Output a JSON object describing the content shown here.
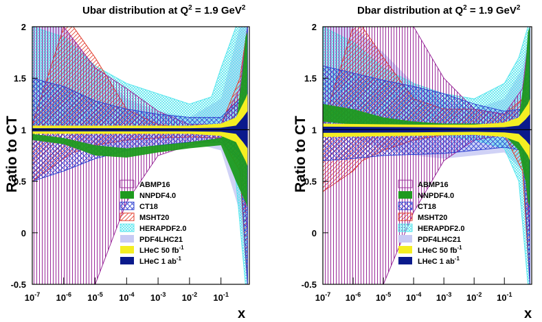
{
  "colors": {
    "abmp16": "#9a2a9a",
    "nnpdf40": "#1f9a1f",
    "ct18": "#2b3fd0",
    "msht20": "#e23a2a",
    "herapdf20": "#58e6ee",
    "pdf4lhc21": "#c8caf4",
    "lhec50": "#f4ee22",
    "lhec1": "#0a1a8c"
  },
  "chart_data": [
    {
      "type": "area",
      "title_main": "Ubar distribution at Q",
      "title_sup": "2",
      "title_rest": " = 1.9 GeV",
      "title_sup2": "2",
      "ylabel": "Ratio to CT",
      "xlabel": "x",
      "xscale": "log",
      "xlim": [
        1e-07,
        0.8
      ],
      "ylim": [
        -0.5,
        2
      ],
      "x_ticks": [
        {
          "base": "10",
          "exp": "-7"
        },
        {
          "base": "10",
          "exp": "-6"
        },
        {
          "base": "10",
          "exp": "-5"
        },
        {
          "base": "10",
          "exp": "-4"
        },
        {
          "base": "10",
          "exp": "-3"
        },
        {
          "base": "10",
          "exp": "-2"
        },
        {
          "base": "10",
          "exp": "-1"
        }
      ],
      "y_ticks": [
        "2",
        "1.5",
        "1",
        "0.5",
        "0",
        "-0.5"
      ],
      "legend": [
        {
          "label": "ABMP16",
          "sup": ""
        },
        {
          "label": "NNPDF4.0",
          "sup": ""
        },
        {
          "label": "CT18",
          "sup": ""
        },
        {
          "label": "MSHT20",
          "sup": ""
        },
        {
          "label": "HERAPDF2.0",
          "sup": ""
        },
        {
          "label": "PDF4LHC21",
          "sup": ""
        },
        {
          "label": "LHeC 50 fb",
          "sup": "-1"
        },
        {
          "label": "LHeC 1 ab",
          "sup": "-1"
        }
      ],
      "series": [
        {
          "name": "PDF4LHC21",
          "x": [
            1e-07,
            1e-06,
            1e-05,
            0.0001,
            0.001,
            0.01,
            0.1,
            0.4,
            0.7
          ],
          "upper": [
            2.0,
            2.0,
            1.6,
            1.3,
            1.18,
            1.12,
            1.3,
            2.0,
            2.0
          ],
          "lower": [
            1.0,
            0.98,
            0.8,
            0.82,
            0.86,
            0.88,
            0.8,
            0.2,
            -0.5
          ]
        },
        {
          "name": "HERAPDF2.0",
          "x": [
            1e-07,
            1e-06,
            1e-05,
            0.0001,
            0.001,
            0.01,
            0.05,
            0.1,
            0.3,
            0.6,
            0.7
          ],
          "upper": [
            2.0,
            1.9,
            1.62,
            1.45,
            1.35,
            1.25,
            1.32,
            1.6,
            2.0,
            2.0,
            2.0
          ],
          "lower": [
            1.05,
            1.05,
            1.02,
            1.0,
            1.0,
            1.0,
            0.97,
            0.95,
            0.5,
            -0.5,
            -0.5
          ]
        },
        {
          "name": "MSHT20",
          "x": [
            1e-07,
            1e-06,
            2e-06,
            1e-05,
            0.0001,
            0.001,
            0.01,
            0.1,
            0.4,
            0.7
          ],
          "upper": [
            1.05,
            2.0,
            2.0,
            1.7,
            1.2,
            1.05,
            1.02,
            1.05,
            1.5,
            2.0
          ],
          "lower": [
            0.5,
            0.72,
            0.78,
            0.85,
            0.9,
            0.92,
            0.93,
            0.92,
            0.6,
            -0.5
          ]
        },
        {
          "name": "ABMP16",
          "x": [
            1e-07,
            1e-06,
            1e-05,
            0.0001,
            0.001,
            0.01,
            0.1,
            0.4,
            0.7
          ],
          "upper": [
            2.0,
            2.0,
            1.6,
            1.4,
            1.18,
            1.05,
            1.05,
            1.4,
            2.0
          ],
          "lower": [
            -0.5,
            -0.5,
            -0.5,
            0.3,
            0.75,
            0.85,
            0.92,
            0.8,
            0.0
          ]
        },
        {
          "name": "CT18",
          "x": [
            1e-07,
            1e-06,
            1e-05,
            0.0001,
            0.001,
            0.01,
            0.1,
            0.4,
            0.7
          ],
          "upper": [
            1.5,
            1.42,
            1.28,
            1.2,
            1.15,
            1.12,
            1.12,
            1.3,
            2.0
          ],
          "lower": [
            0.5,
            0.6,
            0.72,
            0.8,
            0.85,
            0.88,
            0.88,
            0.7,
            -0.5
          ]
        },
        {
          "name": "NNPDF4.0",
          "x": [
            1e-07,
            1e-06,
            1e-05,
            0.0001,
            0.001,
            0.01,
            0.1,
            0.3,
            0.5,
            0.6,
            0.7
          ],
          "upper": [
            0.96,
            0.92,
            0.85,
            0.82,
            0.85,
            0.88,
            0.92,
            1.05,
            1.6,
            1.9,
            1.95
          ],
          "lower": [
            0.9,
            0.86,
            0.75,
            0.73,
            0.78,
            0.82,
            0.85,
            0.5,
            0.35,
            0.3,
            0.25
          ]
        },
        {
          "name": "LHeC 50 fb-1",
          "x": [
            1e-07,
            0.0001,
            0.01,
            0.1,
            0.3,
            0.6,
            0.7
          ],
          "upper": [
            1.04,
            1.04,
            1.04,
            1.06,
            1.12,
            1.3,
            1.35
          ],
          "lower": [
            0.96,
            0.96,
            0.96,
            0.94,
            0.88,
            0.7,
            0.65
          ]
        },
        {
          "name": "LHeC 1 ab-1",
          "x": [
            1e-07,
            0.0001,
            0.01,
            0.1,
            0.3,
            0.5,
            0.7
          ],
          "upper": [
            1.015,
            1.015,
            1.015,
            1.02,
            1.04,
            1.12,
            1.18
          ],
          "lower": [
            0.985,
            0.985,
            0.985,
            0.98,
            0.96,
            0.88,
            0.82
          ]
        }
      ]
    },
    {
      "type": "area",
      "title_main": "Dbar distribution at Q",
      "title_sup": "2",
      "title_rest": " = 1.9 GeV",
      "title_sup2": "2",
      "ylabel": "Ratio to CT",
      "xlabel": "x",
      "xscale": "log",
      "xlim": [
        1e-07,
        0.8
      ],
      "ylim": [
        -0.5,
        2
      ],
      "x_ticks": [
        {
          "base": "10",
          "exp": "-7"
        },
        {
          "base": "10",
          "exp": "-6"
        },
        {
          "base": "10",
          "exp": "-5"
        },
        {
          "base": "10",
          "exp": "-4"
        },
        {
          "base": "10",
          "exp": "-3"
        },
        {
          "base": "10",
          "exp": "-2"
        },
        {
          "base": "10",
          "exp": "-1"
        }
      ],
      "y_ticks": [
        "2",
        "1.5",
        "1",
        "0.5",
        "0",
        "-0.5"
      ],
      "legend": [
        {
          "label": "ABMP16",
          "sup": ""
        },
        {
          "label": "NNPDF4.0",
          "sup": ""
        },
        {
          "label": "CT18",
          "sup": ""
        },
        {
          "label": "MSHT20",
          "sup": ""
        },
        {
          "label": "HERAPDF2.0",
          "sup": ""
        },
        {
          "label": "PDF4LHC21",
          "sup": ""
        },
        {
          "label": "LHeC 50 fb",
          "sup": "-1"
        },
        {
          "label": "LHeC 1 ab",
          "sup": "-1"
        }
      ],
      "series": [
        {
          "name": "PDF4LHC21",
          "x": [
            1e-07,
            1e-06,
            1e-05,
            0.0001,
            0.001,
            0.01,
            0.1,
            0.4,
            0.7
          ],
          "upper": [
            2.0,
            2.0,
            1.75,
            1.45,
            1.28,
            1.2,
            1.3,
            1.6,
            2.0
          ],
          "lower": [
            0.95,
            0.92,
            0.82,
            0.75,
            0.72,
            0.75,
            0.78,
            0.6,
            -0.5
          ]
        },
        {
          "name": "HERAPDF2.0",
          "x": [
            1e-07,
            1e-06,
            1e-05,
            0.0001,
            0.001,
            0.01,
            0.1,
            0.3,
            0.6,
            0.7
          ],
          "upper": [
            2.0,
            1.85,
            1.6,
            1.45,
            1.35,
            1.3,
            1.45,
            1.7,
            2.0,
            2.0
          ],
          "lower": [
            1.05,
            1.05,
            1.03,
            1.0,
            0.95,
            0.9,
            0.82,
            0.5,
            -0.5,
            -0.5
          ]
        },
        {
          "name": "MSHT20",
          "x": [
            1e-07,
            1e-06,
            2e-06,
            1e-05,
            0.0001,
            0.001,
            0.01,
            0.1,
            0.4,
            0.7
          ],
          "upper": [
            1.05,
            2.0,
            2.0,
            1.7,
            1.3,
            1.2,
            1.2,
            1.15,
            1.3,
            2.0
          ],
          "lower": [
            0.4,
            0.6,
            0.7,
            0.8,
            0.9,
            0.95,
            0.96,
            0.95,
            0.6,
            -0.5
          ]
        },
        {
          "name": "ABMP16",
          "x": [
            1e-07,
            1e-06,
            1e-05,
            0.0001,
            0.001,
            0.01,
            0.1,
            0.4,
            0.7
          ],
          "upper": [
            2.0,
            2.0,
            2.0,
            2.0,
            1.5,
            1.2,
            1.15,
            1.4,
            2.0
          ],
          "lower": [
            -0.5,
            -0.5,
            -0.5,
            0.2,
            0.7,
            0.9,
            0.95,
            0.9,
            0.0
          ]
        },
        {
          "name": "CT18",
          "x": [
            1e-07,
            1e-06,
            1e-05,
            0.0001,
            0.001,
            0.01,
            0.1,
            0.4,
            0.7
          ],
          "upper": [
            1.62,
            1.55,
            1.48,
            1.42,
            1.35,
            1.25,
            1.18,
            1.2,
            2.0
          ],
          "lower": [
            0.7,
            0.72,
            0.75,
            0.76,
            0.77,
            0.8,
            0.83,
            0.8,
            -0.5
          ]
        },
        {
          "name": "NNPDF4.0",
          "x": [
            1e-07,
            1e-06,
            1e-05,
            0.0001,
            0.001,
            0.01,
            0.1,
            0.3,
            0.5,
            0.6,
            0.7
          ],
          "upper": [
            1.25,
            1.2,
            1.12,
            1.08,
            1.06,
            1.06,
            1.05,
            1.1,
            1.6,
            1.95,
            2.0
          ],
          "lower": [
            1.08,
            1.05,
            1.02,
            1.0,
            0.99,
            0.97,
            0.95,
            0.8,
            0.5,
            0.3,
            0.25
          ]
        },
        {
          "name": "LHeC 50 fb-1",
          "x": [
            1e-07,
            0.0001,
            0.01,
            0.1,
            0.3,
            0.6,
            0.7
          ],
          "upper": [
            1.06,
            1.05,
            1.05,
            1.07,
            1.12,
            1.25,
            1.3
          ],
          "lower": [
            0.93,
            0.94,
            0.95,
            0.93,
            0.88,
            0.75,
            0.7
          ]
        },
        {
          "name": "LHeC 1 ab-1",
          "x": [
            1e-07,
            0.0001,
            0.01,
            0.1,
            0.3,
            0.5,
            0.7
          ],
          "upper": [
            1.03,
            1.025,
            1.02,
            1.025,
            1.04,
            1.1,
            1.15
          ],
          "lower": [
            0.97,
            0.975,
            0.98,
            0.975,
            0.96,
            0.9,
            0.85
          ]
        }
      ]
    }
  ]
}
